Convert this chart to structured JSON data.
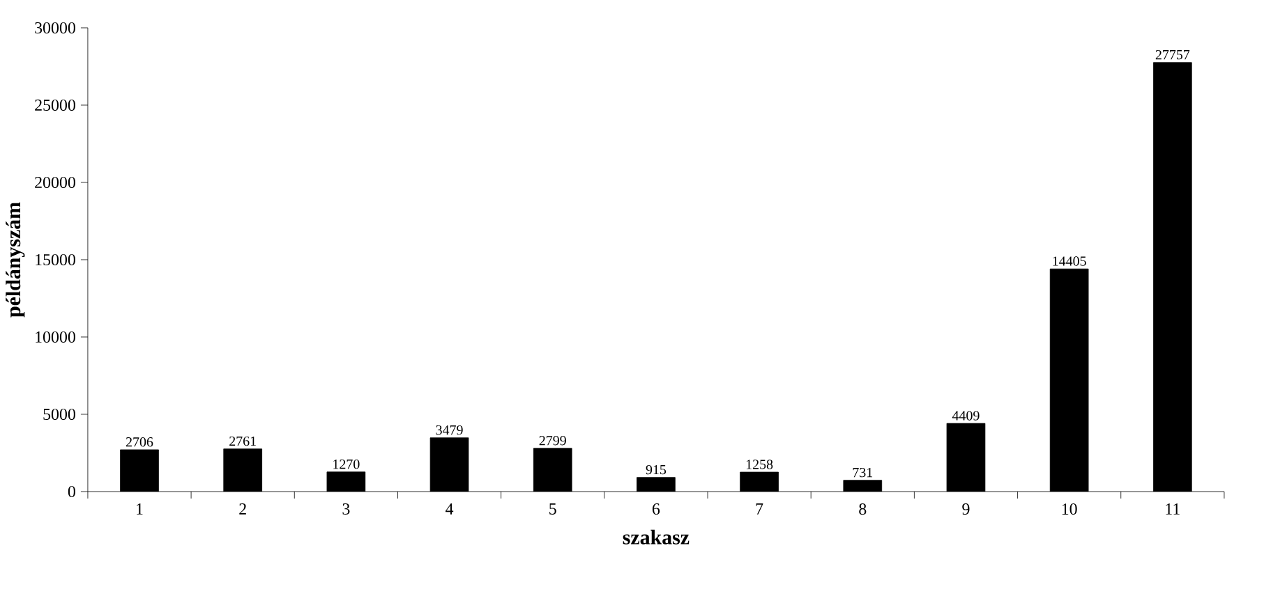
{
  "chart_data": {
    "type": "bar",
    "xlabel": "szakasz",
    "ylabel": "példányszám",
    "categories": [
      "1",
      "2",
      "3",
      "4",
      "5",
      "6",
      "7",
      "8",
      "9",
      "10",
      "11"
    ],
    "values": [
      2706,
      2761,
      1270,
      3479,
      2799,
      915,
      1258,
      731,
      4409,
      14405,
      27757
    ],
    "color": "#000000",
    "data_labels": true,
    "grid": false,
    "ylim": [
      0,
      30000
    ],
    "yticks": [
      0,
      5000,
      10000,
      15000,
      20000,
      25000,
      30000
    ]
  }
}
